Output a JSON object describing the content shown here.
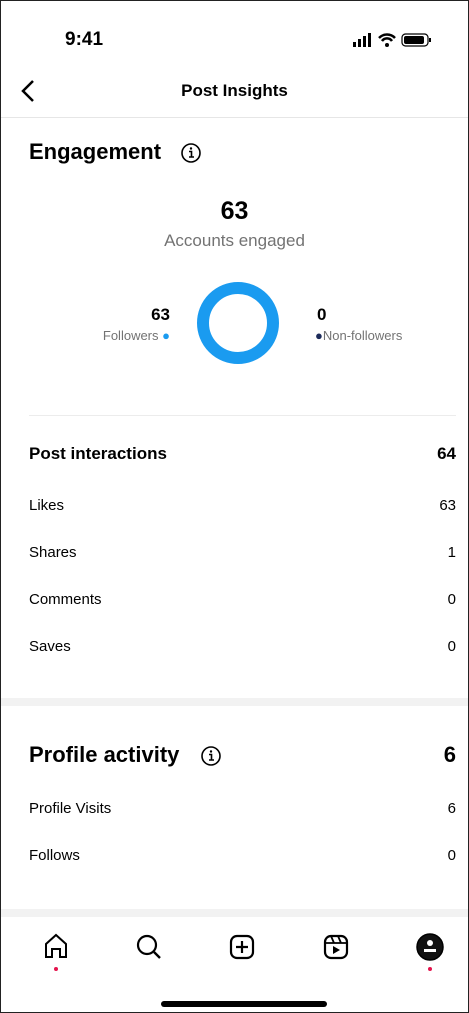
{
  "status_bar": {
    "time": "9:41"
  },
  "header": {
    "title": "Post Insights"
  },
  "engagement": {
    "title": "Engagement",
    "accounts_engaged": 63,
    "accounts_engaged_label": "Accounts engaged",
    "followers": {
      "value": 63,
      "label": "Followers"
    },
    "non_followers": {
      "value": 0,
      "label": "Non-followers"
    }
  },
  "post_interactions": {
    "title": "Post interactions",
    "total": 64,
    "rows": [
      {
        "label": "Likes",
        "value": 63
      },
      {
        "label": "Shares",
        "value": 1
      },
      {
        "label": "Comments",
        "value": 0
      },
      {
        "label": "Saves",
        "value": 0
      }
    ]
  },
  "profile_activity": {
    "title": "Profile activity",
    "total": 6,
    "rows": [
      {
        "label": "Profile Visits",
        "value": 6
      },
      {
        "label": "Follows",
        "value": 0
      }
    ]
  }
}
